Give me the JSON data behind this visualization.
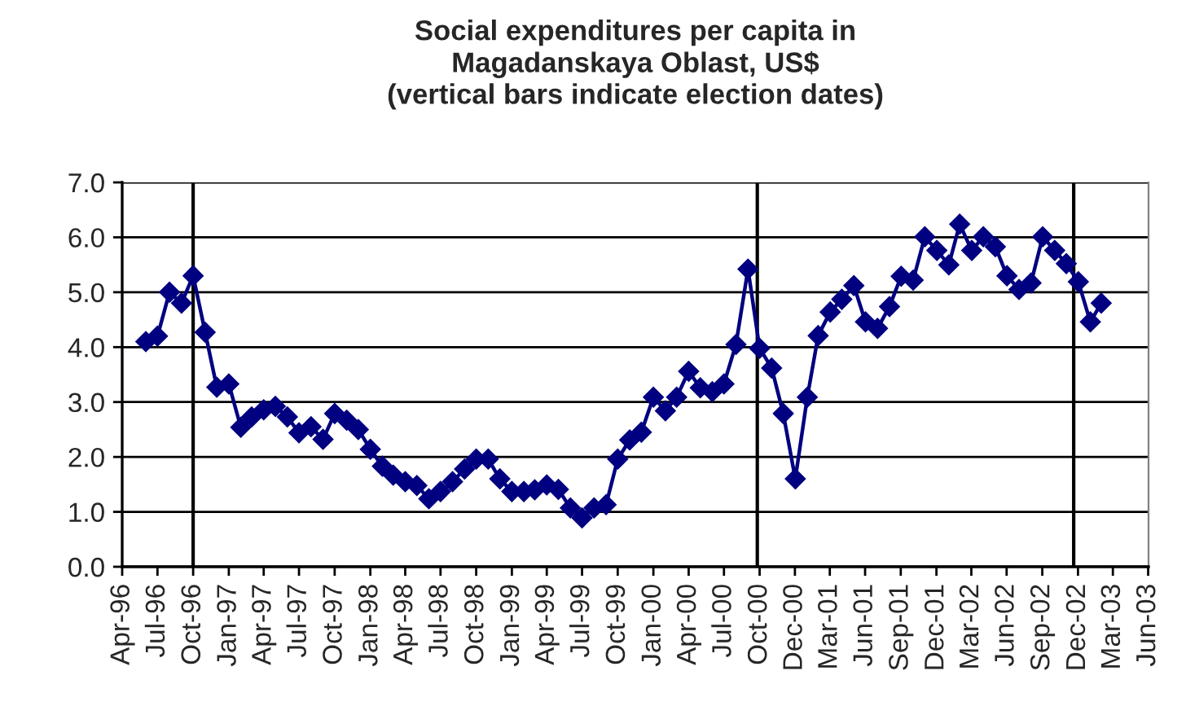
{
  "chart_data": {
    "type": "line",
    "title": "Social expenditures per capita in\nMagadanskaya Oblast, US$\n(vertical bars indicate election dates)",
    "x": [
      "1996-06",
      "1996-07",
      "1996-08",
      "1996-09",
      "1996-10",
      "1996-11",
      "1996-12",
      "1997-01",
      "1997-02",
      "1997-03",
      "1997-04",
      "1997-05",
      "1997-06",
      "1997-07",
      "1997-08",
      "1997-09",
      "1997-10",
      "1997-11",
      "1997-12",
      "1998-01",
      "1998-02",
      "1998-03",
      "1998-04",
      "1998-05",
      "1998-06",
      "1998-07",
      "1998-08",
      "1998-09",
      "1998-10",
      "1998-11",
      "1998-12",
      "1999-01",
      "1999-02",
      "1999-03",
      "1999-04",
      "1999-05",
      "1999-06",
      "1999-07",
      "1999-08",
      "1999-09",
      "1999-10",
      "1999-11",
      "1999-12",
      "2000-01",
      "2000-02",
      "2000-03",
      "2000-04",
      "2000-05",
      "2000-06",
      "2000-07",
      "2000-08",
      "2000-09",
      "2000-10",
      "2000-11",
      "2000-12",
      "2001-01",
      "2001-02",
      "2001-03",
      "2001-04",
      "2001-05",
      "2001-06",
      "2001-07",
      "2001-08",
      "2001-09",
      "2001-10",
      "2001-11",
      "2001-12",
      "2002-01",
      "2002-02",
      "2002-03",
      "2002-04",
      "2002-05",
      "2002-06",
      "2002-07",
      "2002-08",
      "2002-09",
      "2002-10",
      "2002-11",
      "2002-12",
      "2003-01",
      "2003-02",
      "2003-03"
    ],
    "series": [
      {
        "color": "#000080",
        "values": [
          4.1,
          4.2,
          5.0,
          4.8,
          5.3,
          4.27,
          3.27,
          3.33,
          2.54,
          2.73,
          2.86,
          2.92,
          2.73,
          2.44,
          2.55,
          2.32,
          2.79,
          2.67,
          2.5,
          2.14,
          1.83,
          1.67,
          1.55,
          1.48,
          1.24,
          1.37,
          1.55,
          1.78,
          1.96,
          1.96,
          1.6,
          1.37,
          1.37,
          1.4,
          1.49,
          1.41,
          1.07,
          0.89,
          1.07,
          1.13,
          1.96,
          2.31,
          2.45,
          3.09,
          2.84,
          3.09,
          3.56,
          3.26,
          3.19,
          3.33,
          4.05,
          5.42,
          3.98,
          3.62,
          2.79,
          1.6,
          3.09,
          4.21,
          4.64,
          4.87,
          5.12,
          4.46,
          4.34,
          4.74,
          5.29,
          5.22,
          6.01,
          5.76,
          5.5,
          6.24,
          5.76,
          6.01,
          5.83,
          5.3,
          5.05,
          5.17,
          6.01,
          5.76,
          5.52,
          5.19,
          4.46,
          4.8
        ]
      }
    ],
    "marker": "diamond",
    "line_style": "solid",
    "grid": "y",
    "legend": false,
    "xlim": [
      "1996-04-01",
      "2003-07-01"
    ],
    "xticks": [
      {
        "value": "1996-04-01",
        "label": "Apr-96"
      },
      {
        "value": "1996-07-01",
        "label": "Jul-96"
      },
      {
        "value": "1996-10-01",
        "label": "Oct-96"
      },
      {
        "value": "1997-01-01",
        "label": "Jan-97"
      },
      {
        "value": "1997-04-01",
        "label": "Apr-97"
      },
      {
        "value": "1997-07-01",
        "label": "Jul-97"
      },
      {
        "value": "1997-10-01",
        "label": "Oct-97"
      },
      {
        "value": "1998-01-01",
        "label": "Jan-98"
      },
      {
        "value": "1998-04-01",
        "label": "Apr-98"
      },
      {
        "value": "1998-07-01",
        "label": "Jul-98"
      },
      {
        "value": "1998-10-01",
        "label": "Oct-98"
      },
      {
        "value": "1999-01-01",
        "label": "Jan-99"
      },
      {
        "value": "1999-04-01",
        "label": "Apr-99"
      },
      {
        "value": "1999-07-01",
        "label": "Jul-99"
      },
      {
        "value": "1999-10-01",
        "label": "Oct-99"
      },
      {
        "value": "2000-01-01",
        "label": "Jan-00"
      },
      {
        "value": "2000-04-01",
        "label": "Apr-00"
      },
      {
        "value": "2000-07-01",
        "label": "Jul-00"
      },
      {
        "value": "2000-10-01",
        "label": "Oct-00"
      },
      {
        "value": "2000-12-31",
        "label": "Dec-00"
      },
      {
        "value": "2001-03-31",
        "label": "Mar-01"
      },
      {
        "value": "2001-06-30",
        "label": "Jun-01"
      },
      {
        "value": "2001-09-30",
        "label": "Sep-01"
      },
      {
        "value": "2001-12-31",
        "label": "Dec-01"
      },
      {
        "value": "2002-03-31",
        "label": "Mar-02"
      },
      {
        "value": "2002-06-30",
        "label": "Jun-02"
      },
      {
        "value": "2002-09-30",
        "label": "Sep-02"
      },
      {
        "value": "2002-12-31",
        "label": "Dec-02"
      },
      {
        "value": "2003-03-31",
        "label": "Mar-03"
      },
      {
        "value": "2003-06-30",
        "label": "Jun-03"
      }
    ],
    "ylim": [
      0,
      7
    ],
    "yticks": [
      {
        "value": 0,
        "label": "0.0"
      },
      {
        "value": 1,
        "label": "1.0"
      },
      {
        "value": 2,
        "label": "2.0"
      },
      {
        "value": 3,
        "label": "3.0"
      },
      {
        "value": 4,
        "label": "4.0"
      },
      {
        "value": 5,
        "label": "5.0"
      },
      {
        "value": 6,
        "label": "6.0"
      },
      {
        "value": 7,
        "label": "7.0"
      }
    ],
    "ref_lines": [
      {
        "axis": "x",
        "value": "1996-10-01",
        "color": "#000000"
      },
      {
        "axis": "x",
        "value": "2000-09-25",
        "color": "#000000"
      },
      {
        "axis": "x",
        "value": "2002-12-20",
        "color": "#000000"
      }
    ]
  }
}
